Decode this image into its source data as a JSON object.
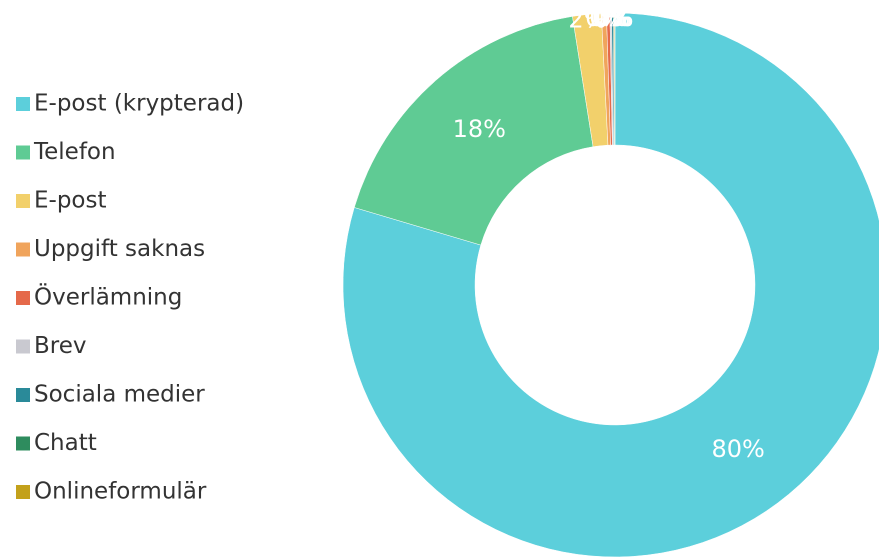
{
  "chart_data": {
    "type": "donut",
    "categories": [
      "E-post (krypterad)",
      "Telefon",
      "E-post",
      "Uppgift saknas",
      "Överlämning",
      "Brev",
      "Sociala medier",
      "Chatt",
      "Onlineformulär"
    ],
    "values": [
      79.6,
      17.9,
      1.7,
      0.3,
      0.2,
      0.1,
      0.1,
      0.05,
      0.05
    ],
    "value_labels": [
      "80%",
      "18%",
      "2%",
      "0%",
      "0%",
      "0%",
      "0%",
      "0%",
      "0%"
    ],
    "colors": [
      "#5ccfdb",
      "#5fcb94",
      "#f2d06b",
      "#f0a45c",
      "#e5694a",
      "#c9c9d0",
      "#2a8a99",
      "#2e8c5e",
      "#c3a11b"
    ],
    "legend": "left"
  }
}
